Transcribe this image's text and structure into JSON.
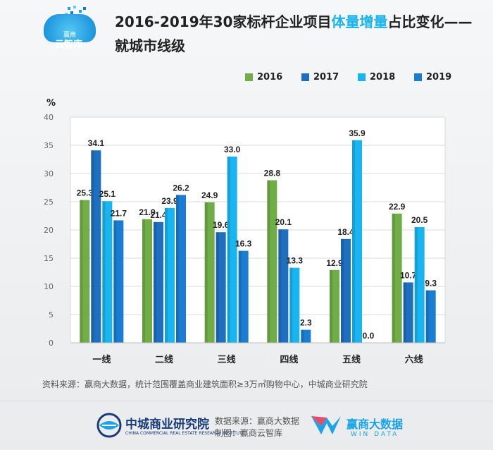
{
  "header": {
    "logo_line1": "赢商",
    "logo_line2": "云智库",
    "title_part1": "2016-2019年30家标杆企业项目",
    "title_highlight": "体量增量",
    "title_part2": "占比变化——",
    "title_line2": "就城市线级"
  },
  "colors": {
    "s2016": "#70ad47",
    "s2017": "#1f6fc0",
    "s2018": "#19b5f0",
    "s2019": "#1a7dd2",
    "title_highlight": "#1bb3ec"
  },
  "chart_data": {
    "type": "bar",
    "title": "2016-2019年30家标杆企业项目体量增量占比变化——就城市线级",
    "ylabel": "%",
    "xlabel": "",
    "ylim": [
      0,
      40
    ],
    "yticks": [
      0,
      5,
      10,
      15,
      20,
      25,
      30,
      35,
      40
    ],
    "grid": true,
    "legend_position": "top-right",
    "categories": [
      "一线",
      "二线",
      "三线",
      "四线",
      "五线",
      "六线"
    ],
    "series": [
      {
        "name": "2016",
        "values": [
          25.3,
          21.9,
          24.9,
          28.8,
          12.9,
          22.9
        ]
      },
      {
        "name": "2017",
        "values": [
          34.1,
          21.4,
          19.6,
          20.1,
          18.4,
          10.7
        ]
      },
      {
        "name": "2018",
        "values": [
          25.1,
          23.9,
          33.0,
          13.3,
          35.9,
          20.5
        ]
      },
      {
        "name": "2019",
        "values": [
          21.7,
          26.2,
          16.3,
          2.3,
          0.0,
          9.3
        ]
      }
    ]
  },
  "notes": {
    "source": "资料来源：赢商大数据，统计范围覆盖商业建筑面积≥3万㎡购物中心，中城商业研究院"
  },
  "footer": {
    "org_name": "中城商业研究院",
    "org_sub": "CHINA COMMERCIAL REAL ESTATE RESEARCH INSTITUTE",
    "data_source": "数据来源：赢商大数据",
    "made_by": "制图：赢商云智库",
    "brand_name": "赢商大数据",
    "brand_sub": "WIN DATA"
  }
}
